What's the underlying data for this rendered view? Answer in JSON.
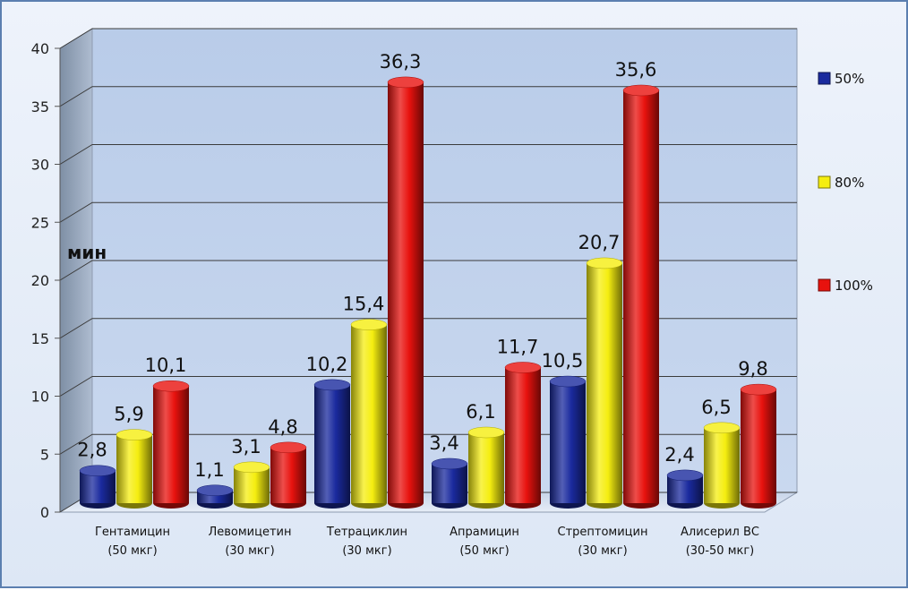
{
  "chart_data": {
    "type": "bar",
    "ylabel": "мин",
    "ylim": [
      0,
      40
    ],
    "yticks": [
      "0",
      "5",
      "10",
      "15",
      "20",
      "25",
      "30",
      "35",
      "40"
    ],
    "grid": true,
    "legend_position": "right",
    "categories": [
      {
        "line1": "Гентамицин",
        "line2": "(50 мкг)"
      },
      {
        "line1": "Левомицетин",
        "line2": "(30 мкг)"
      },
      {
        "line1": "Тетрациклин",
        "line2": "(30 мкг)"
      },
      {
        "line1": "Апрамицин",
        "line2": "(50 мкг)"
      },
      {
        "line1": "Стрептомицин",
        "line2": "(30 мкг)"
      },
      {
        "line1": "Алисерил ВС",
        "line2": "(30-50 мкг)"
      }
    ],
    "series": [
      {
        "name": "50%",
        "color": "#1a2a9e",
        "values": [
          2.8,
          1.1,
          10.2,
          3.4,
          10.5,
          2.4
        ],
        "labels": [
          "2,8",
          "1,1",
          "10,2",
          "3,4",
          "10,5",
          "2,4"
        ]
      },
      {
        "name": "80%",
        "color": "#f5ee10",
        "values": [
          5.9,
          3.1,
          15.4,
          6.1,
          20.7,
          6.5
        ],
        "labels": [
          "5,9",
          "3,1",
          "15,4",
          "6,1",
          "20,7",
          "6,5"
        ]
      },
      {
        "name": "100%",
        "color": "#e8120e",
        "values": [
          10.1,
          4.8,
          36.3,
          11.7,
          35.6,
          9.8
        ],
        "labels": [
          "10,1",
          "4,8",
          "36,3",
          "11,7",
          "35,6",
          "9,8"
        ]
      }
    ]
  }
}
